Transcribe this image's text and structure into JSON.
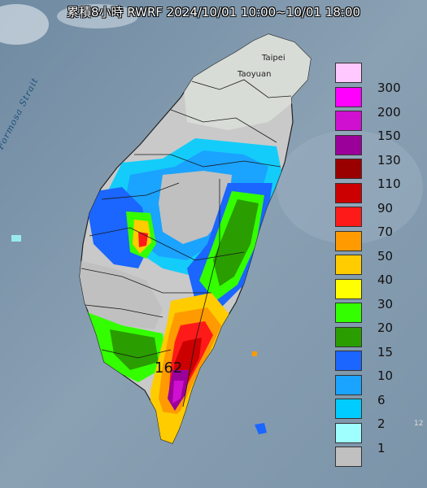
{
  "title": "累積8小時 RWRF 2024/10/01 10:00~10/01 18:00",
  "map": {
    "labels": {
      "taipei": "Taipei",
      "taoyuan": "Taoyuan",
      "strait": "Formosa Strait",
      "peak_value": "162",
      "edge_tick": "12"
    }
  },
  "legend": [
    {
      "label": "300",
      "color": "#ffc8ff"
    },
    {
      "label": "200",
      "color": "#ff00ff"
    },
    {
      "label": "150",
      "color": "#d010d0"
    },
    {
      "label": "130",
      "color": "#9b009b"
    },
    {
      "label": "110",
      "color": "#9b0000"
    },
    {
      "label": "90",
      "color": "#cc0000"
    },
    {
      "label": "70",
      "color": "#ff1a1a"
    },
    {
      "label": "50",
      "color": "#ff9a00"
    },
    {
      "label": "40",
      "color": "#ffcc00"
    },
    {
      "label": "30",
      "color": "#ffff00"
    },
    {
      "label": "20",
      "color": "#33ff00"
    },
    {
      "label": "15",
      "color": "#2a9d00"
    },
    {
      "label": "10",
      "color": "#1a66ff"
    },
    {
      "label": "6",
      "color": "#1aa3ff"
    },
    {
      "label": "2",
      "color": "#00ccff"
    },
    {
      "label": "1",
      "color": "#9fffff"
    },
    {
      "label": "",
      "color": "#c0c0c0"
    }
  ]
}
